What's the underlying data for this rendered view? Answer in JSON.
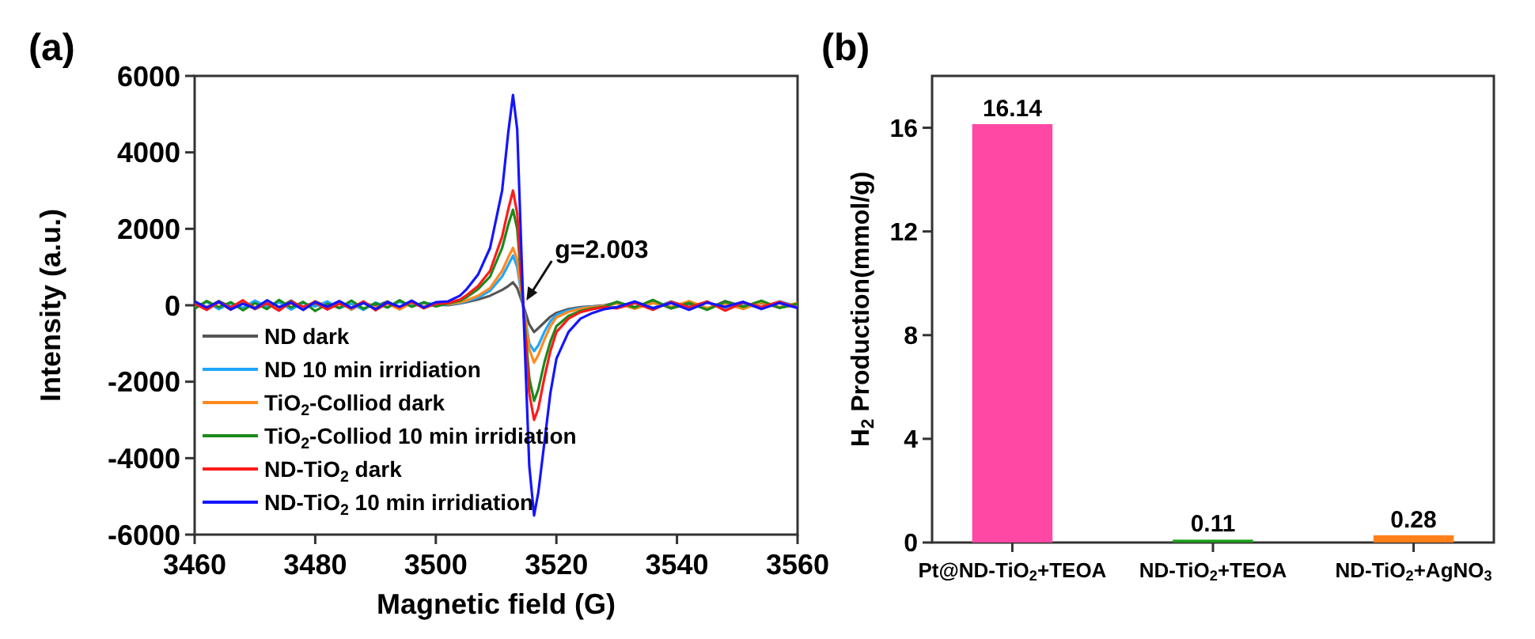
{
  "chart_data": [
    {
      "type": "line",
      "title": "(a)",
      "xlabel": "Magnetic field (G)",
      "ylabel": "Intensity (a.u.)",
      "xlim": [
        3460,
        3560
      ],
      "xticks": [
        3460,
        3480,
        3500,
        3520,
        3540,
        3560
      ],
      "ylim": [
        -6000,
        6000
      ],
      "yticks": [
        -6000,
        -4000,
        -2000,
        0,
        2000,
        4000,
        6000
      ],
      "legend": "bottom left",
      "annotations": [
        {
          "text": "g=2.003",
          "x": 3514.5,
          "y": 0
        }
      ],
      "x": [
        3460,
        3462,
        3464,
        3466,
        3468,
        3470,
        3472,
        3474,
        3476,
        3478,
        3480,
        3482,
        3484,
        3486,
        3488,
        3490,
        3492,
        3494,
        3496,
        3498,
        3500,
        3502,
        3504,
        3505,
        3507,
        3509,
        3511,
        3512,
        3512.8,
        3513.5,
        3514.5,
        3515.5,
        3516.3,
        3517,
        3518,
        3519,
        3520,
        3522,
        3524,
        3526,
        3528,
        3530,
        3533,
        3536,
        3539,
        3542,
        3545,
        3548,
        3551,
        3554,
        3557,
        3560
      ],
      "series": [
        {
          "name": "ND dark",
          "color": "#555555",
          "values": [
            50,
            -70,
            110,
            -40,
            80,
            -100,
            40,
            -60,
            120,
            -80,
            30,
            -50,
            90,
            -110,
            60,
            -20,
            100,
            -70,
            50,
            -40,
            20,
            0,
            50,
            80,
            150,
            250,
            400,
            500,
            600,
            450,
            0,
            -500,
            -700,
            -600,
            -450,
            -300,
            -200,
            -100,
            -50,
            -30,
            0,
            70,
            -50,
            100,
            -80,
            40,
            -90,
            110,
            -30,
            60,
            -60,
            20
          ]
        },
        {
          "name": "ND 10 min irridiation",
          "color": "#1ea7ff",
          "values": [
            -60,
            90,
            -100,
            50,
            -70,
            120,
            -40,
            80,
            -110,
            60,
            -30,
            100,
            -80,
            40,
            -120,
            70,
            -50,
            90,
            -20,
            60,
            30,
            20,
            60,
            100,
            200,
            380,
            750,
            1050,
            1300,
            1000,
            0,
            -1000,
            -1200,
            -1050,
            -700,
            -420,
            -250,
            -130,
            -70,
            -40,
            -20,
            -60,
            90,
            -70,
            100,
            -40,
            80,
            -110,
            50,
            -80,
            100,
            -30
          ]
        },
        {
          "name": "TiO$_{2}$-Colliod dark",
          "color": "#ff8a1e",
          "values": [
            80,
            -40,
            70,
            -120,
            100,
            -50,
            60,
            -90,
            40,
            -70,
            110,
            -30,
            60,
            -100,
            80,
            -60,
            40,
            -110,
            70,
            -30,
            50,
            30,
            80,
            120,
            250,
            450,
            900,
            1250,
            1500,
            1200,
            0,
            -1150,
            -1500,
            -1300,
            -900,
            -550,
            -320,
            -170,
            -90,
            -50,
            -20,
            50,
            -90,
            60,
            -40,
            110,
            -70,
            40,
            -100,
            80,
            -50,
            60
          ]
        },
        {
          "name": "TiO$_{2}$-Colliod 10 min irridiation",
          "color": "#1a8a1a",
          "values": [
            -90,
            110,
            -50,
            80,
            -130,
            60,
            -100,
            140,
            -60,
            90,
            -150,
            40,
            -70,
            120,
            -90,
            50,
            -60,
            130,
            -40,
            80,
            -30,
            50,
            120,
            200,
            420,
            750,
            1500,
            2100,
            2500,
            2000,
            0,
            -1900,
            -2500,
            -2200,
            -1500,
            -950,
            -550,
            -280,
            -150,
            -80,
            -40,
            90,
            -60,
            140,
            -80,
            60,
            -120,
            90,
            -40,
            120,
            -70,
            40
          ]
        },
        {
          "name": "ND-TiO$_{2}$ dark",
          "color": "#ff1a1a",
          "values": [
            40,
            -120,
            80,
            -60,
            130,
            -90,
            50,
            -140,
            90,
            -40,
            70,
            -110,
            40,
            -70,
            100,
            -130,
            60,
            -50,
            90,
            -80,
            40,
            60,
            150,
            250,
            500,
            900,
            1800,
            2500,
            3000,
            2400,
            0,
            -2300,
            -3000,
            -2700,
            -1900,
            -1200,
            -700,
            -350,
            -180,
            -100,
            -50,
            -80,
            60,
            -120,
            90,
            -50,
            100,
            -140,
            70,
            -40,
            90,
            -60
          ]
        },
        {
          "name": "ND-TiO$_{2}$ 10 min irridiation",
          "color": "#1414ff",
          "values": [
            100,
            -60,
            90,
            -110,
            40,
            -80,
            130,
            -50,
            70,
            -120,
            90,
            -40,
            110,
            -70,
            60,
            -100,
            80,
            -40,
            120,
            -60,
            80,
            100,
            250,
            400,
            800,
            1500,
            3000,
            4500,
            5500,
            4600,
            0,
            -4200,
            -5500,
            -4900,
            -3600,
            -2300,
            -1400,
            -700,
            -350,
            -200,
            -100,
            -50,
            100,
            -80,
            60,
            -120,
            70,
            -40,
            90,
            -100,
            60,
            -70
          ]
        }
      ]
    },
    {
      "type": "bar",
      "title": "(b)",
      "ylabel": "H$_{2}$ Production(mmol/g)",
      "categories": [
        "Pt@ND-TiO$_{2}$+TEOA",
        "ND-TiO$_{2}$+TEOA",
        "ND-TiO$_{2}$+AgNO$_{3}$"
      ],
      "values": [
        16.14,
        0.11,
        0.28
      ],
      "colors": [
        "#ff47a3",
        "#1a9e1a",
        "#ff7f1a"
      ],
      "ylim": [
        0,
        18
      ],
      "yticks": [
        0,
        4,
        8,
        12,
        16
      ],
      "data_labels": true
    }
  ]
}
